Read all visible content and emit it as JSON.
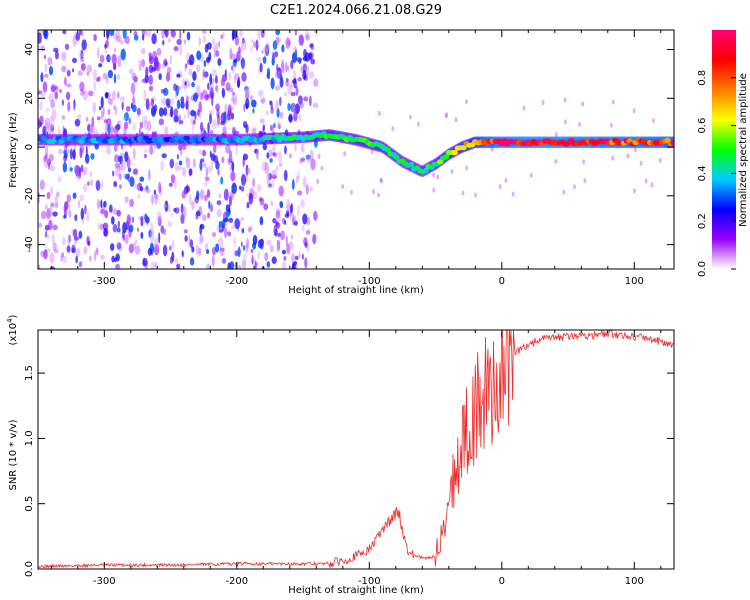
{
  "title": "C2E1.2024.066.21.08.G29",
  "colors": {
    "snr_line": "#ee2a2a",
    "colormap": [
      "#ffffff",
      "#9a00ff",
      "#0000ff",
      "#00ccff",
      "#00ff00",
      "#ffff00",
      "#ff7a00",
      "#ff0000",
      "#ff0077"
    ]
  },
  "chart_data": [
    {
      "type": "heatmap",
      "name": "spectrogram",
      "xlabel": "Height of straight line (km)",
      "ylabel": "Frequency (Hz)",
      "xlim": [
        -350,
        130
      ],
      "ylim": [
        -50,
        48
      ],
      "x_ticks": [
        -300,
        -200,
        -100,
        0,
        100
      ],
      "x_tick_labels": [
        "-300",
        "-200",
        "-100",
        "0",
        "100"
      ],
      "y_ticks": [
        -40,
        -20,
        0,
        20,
        40
      ],
      "y_tick_labels": [
        "-40",
        "-20",
        "0",
        "20",
        "40"
      ],
      "grid": false,
      "colorbar": {
        "label": "Normalized spectral amplitude",
        "range": [
          0,
          1
        ],
        "ticks": [
          0,
          0.2,
          0.4,
          0.6,
          0.8
        ],
        "tick_labels": [
          "0.0",
          "0.2",
          "0.4",
          "0.6",
          "0.8"
        ]
      },
      "ridge": {
        "x": [
          -350,
          -300,
          -250,
          -200,
          -150,
          -130,
          -110,
          -90,
          -75,
          -60,
          -50,
          -40,
          -30,
          -20,
          -10,
          0,
          30,
          60,
          90,
          130
        ],
        "freq": [
          3,
          3,
          3,
          3,
          4,
          5,
          3,
          0,
          -6,
          -10,
          -7,
          -3,
          0,
          2,
          2,
          2,
          2,
          2,
          2,
          2
        ],
        "amplitude": [
          0.35,
          0.35,
          0.3,
          0.35,
          0.45,
          0.5,
          0.5,
          0.5,
          0.45,
          0.45,
          0.5,
          0.55,
          0.6,
          0.75,
          0.85,
          0.9,
          0.92,
          0.9,
          0.88,
          0.85
        ]
      },
      "noise_extent_x": [
        -350,
        -140
      ]
    },
    {
      "type": "line",
      "name": "snr",
      "xlabel": "Height of straight line (km)",
      "ylabel": "SNR (10 * v/v)",
      "yscale_label": "(x10",
      "yscale_exp": "4",
      "yscale_close": ")",
      "xlim": [
        -350,
        130
      ],
      "ylim": [
        0,
        1.83
      ],
      "x_ticks": [
        -300,
        -200,
        -100,
        0,
        100
      ],
      "x_tick_labels": [
        "-300",
        "-200",
        "-100",
        "0",
        "100"
      ],
      "y_ticks": [
        0,
        0.5,
        1.0,
        1.5
      ],
      "y_tick_labels": [
        "0.0",
        "0.5",
        "1.0",
        "1.5"
      ],
      "grid": false,
      "series": [
        {
          "x": [
            -350,
            -300,
            -250,
            -200,
            -150,
            -130,
            -115,
            -100,
            -90,
            -82,
            -78,
            -74,
            -70,
            -65,
            -58,
            -50,
            -44,
            -40,
            -35,
            -30,
            -25,
            -20,
            -15,
            -10,
            -5,
            0,
            10,
            20,
            30,
            40,
            50,
            60,
            70,
            80,
            90,
            100,
            110,
            120,
            130
          ],
          "y": [
            0.02,
            0.03,
            0.03,
            0.04,
            0.04,
            0.04,
            0.08,
            0.15,
            0.3,
            0.4,
            0.45,
            0.25,
            0.12,
            0.1,
            0.08,
            0.1,
            0.3,
            0.55,
            0.75,
            0.95,
            1.1,
            1.2,
            1.3,
            1.35,
            1.4,
            1.5,
            1.65,
            1.72,
            1.76,
            1.77,
            1.78,
            1.79,
            1.79,
            1.8,
            1.79,
            1.78,
            1.77,
            1.74,
            1.7
          ]
        }
      ]
    }
  ]
}
